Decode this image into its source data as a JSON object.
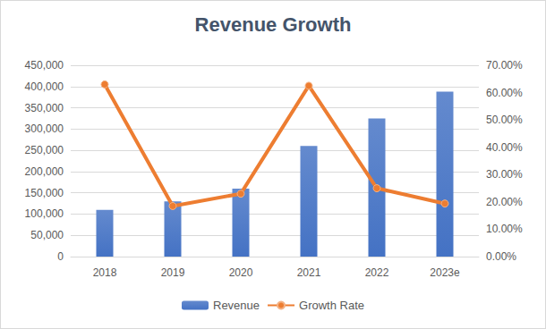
{
  "chart_data": {
    "type": "bar",
    "title": "Revenue Growth",
    "categories": [
      "2018",
      "2019",
      "2020",
      "2021",
      "2022",
      "2023e"
    ],
    "series": [
      {
        "name": "Revenue",
        "type": "bar",
        "color": "#4472c4",
        "values": [
          110000,
          130000,
          160000,
          260000,
          325000,
          388000
        ]
      },
      {
        "name": "Growth Rate",
        "type": "line",
        "axis": "y2",
        "color": "#ed7d31",
        "marker": "circle",
        "values": [
          63,
          18.5,
          23,
          62.5,
          25,
          19.4
        ]
      }
    ],
    "ylim": [
      0,
      450000
    ],
    "yticks": [
      0,
      {
        "value": 50000,
        "label": "50,000"
      },
      {
        "value": 100000,
        "label": "100,000"
      },
      {
        "value": 150000,
        "label": "150,000"
      },
      {
        "value": 200000,
        "label": "200,000"
      },
      {
        "value": 250000,
        "label": "250,000"
      },
      {
        "value": 300000,
        "label": "300,000"
      },
      {
        "value": 350000,
        "label": "350,000"
      },
      {
        "value": 400000,
        "label": "400,000"
      },
      {
        "value": 450000,
        "label": "450,000"
      }
    ],
    "y2lim": [
      0,
      70
    ],
    "y2ticks": [
      {
        "value": 0,
        "label": "0.00%"
      },
      {
        "value": 10,
        "label": "10.00%"
      },
      {
        "value": 20,
        "label": "20.00%"
      },
      {
        "value": 30,
        "label": "30.00%"
      },
      {
        "value": 40,
        "label": "40.00%"
      },
      {
        "value": 50,
        "label": "50.00%"
      },
      {
        "value": 60,
        "label": "60.00%"
      },
      {
        "value": 70,
        "label": "70.00%"
      }
    ],
    "grid": true,
    "legend": "bottom"
  }
}
